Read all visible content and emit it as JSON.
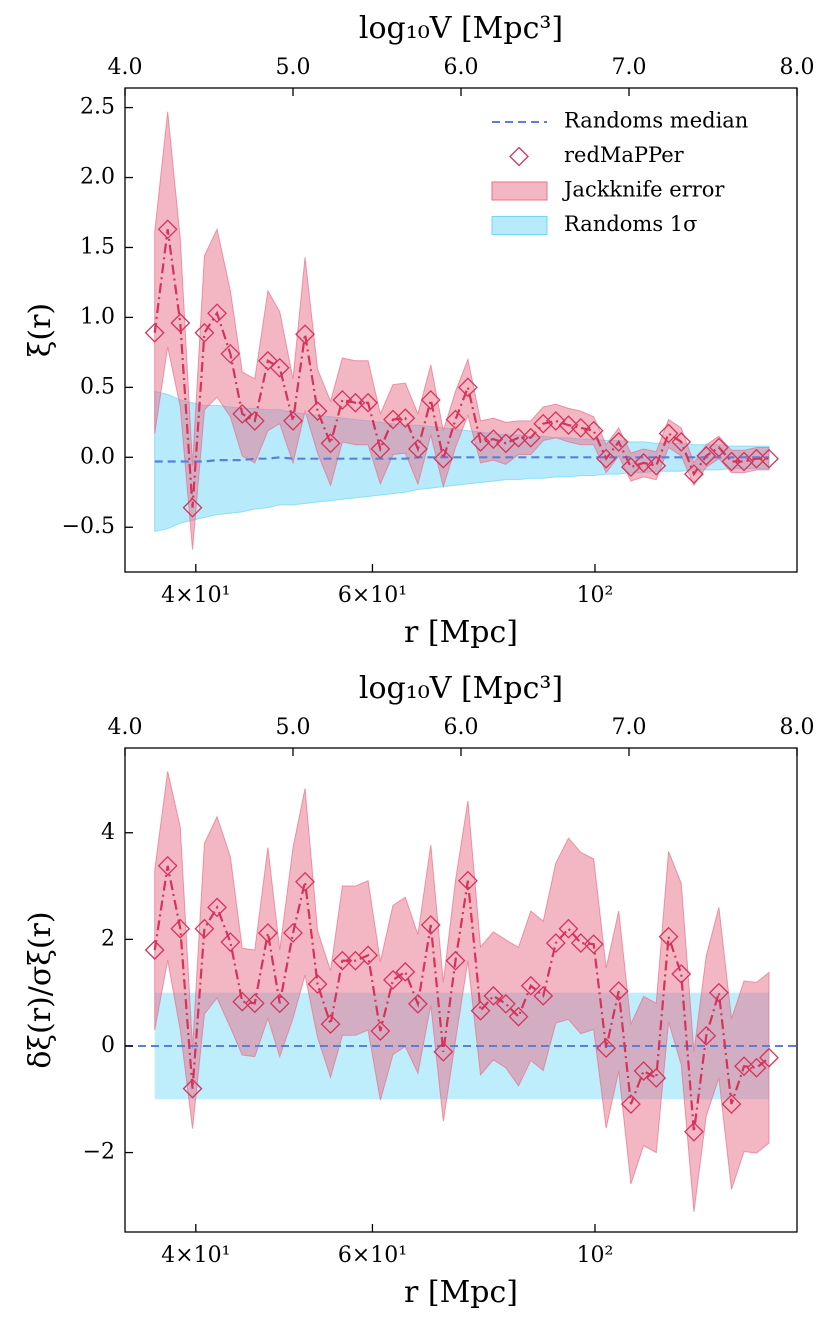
{
  "chart_data": [
    {
      "type": "line",
      "x2label": "log₁₀V [Mpc³]",
      "xlabel": "r [Mpc]",
      "ylabel": "ξ(r)",
      "xscale": "log",
      "legend": "upper right",
      "x": [
        36.4,
        37.5,
        38.6,
        39.7,
        40.8,
        42.0,
        43.3,
        44.5,
        45.8,
        47.2,
        48.5,
        50.0,
        51.4,
        52.9,
        54.5,
        56.0,
        57.7,
        59.4,
        61.1,
        62.9,
        64.7,
        66.6,
        68.6,
        70.6,
        72.6,
        74.7,
        76.9,
        79.2,
        81.5,
        83.9,
        86.3,
        88.8,
        91.4,
        94.1,
        96.8,
        99.7,
        102.6,
        105.6,
        108.6,
        111.8,
        115.1,
        118.4,
        121.9,
        125.5,
        129.1,
        132.9,
        136.8,
        140.8,
        144.9,
        149.1
      ],
      "xlim": [
        34,
        159
      ],
      "xticks": [
        {
          "value": 40,
          "label": "4×10¹"
        },
        {
          "value": 60,
          "label": "6×10¹"
        },
        {
          "value": 100,
          "label": "10²"
        }
      ],
      "x2lim": [
        4,
        8
      ],
      "x2ticks": [
        {
          "value": 4,
          "label": "4.0"
        },
        {
          "value": 5,
          "label": "5.0"
        },
        {
          "value": 6,
          "label": "6.0"
        },
        {
          "value": 7,
          "label": "7.0"
        },
        {
          "value": 8,
          "label": "8.0"
        }
      ],
      "ylim": [
        -0.82,
        2.64
      ],
      "yticks": [
        {
          "value": -0.5,
          "label": "−0.5"
        },
        {
          "value": 0,
          "label": "0.0"
        },
        0.5,
        {
          "value": 1,
          "label": "1.0"
        },
        1.5,
        {
          "value": 2,
          "label": "2.0"
        },
        2.5
      ],
      "series": [
        {
          "name": "Randoms median",
          "color": "#5b7fde",
          "style": "dashed",
          "values": [
            -0.03,
            -0.03,
            -0.03,
            -0.03,
            -0.03,
            -0.02,
            -0.02,
            -0.02,
            -0.01,
            -0.01,
            0,
            -0.01,
            -0.01,
            -0.01,
            -0.01,
            -0.01,
            -0.01,
            -0.01,
            -0.01,
            -0.01,
            -0.01,
            0,
            0,
            0,
            0,
            0,
            0,
            0,
            0,
            0,
            0,
            0,
            0,
            0,
            0,
            0,
            0,
            0,
            0,
            0,
            0,
            0,
            0,
            0,
            0,
            0,
            0,
            0,
            0,
            0
          ],
          "error_name": "Randoms 1σ",
          "error_color": "#6fd6f7",
          "errors": [
            0.5,
            0.48,
            0.44,
            0.42,
            0.4,
            0.39,
            0.38,
            0.37,
            0.36,
            0.35,
            0.34,
            0.33,
            0.32,
            0.31,
            0.3,
            0.29,
            0.28,
            0.27,
            0.26,
            0.25,
            0.24,
            0.23,
            0.22,
            0.21,
            0.2,
            0.19,
            0.18,
            0.17,
            0.16,
            0.16,
            0.15,
            0.15,
            0.14,
            0.14,
            0.13,
            0.13,
            0.12,
            0.12,
            0.11,
            0.11,
            0.1,
            0.1,
            0.1,
            0.09,
            0.09,
            0.09,
            0.08,
            0.08,
            0.08,
            0.08
          ]
        },
        {
          "name": "redMaPPer",
          "color": "#d6325a",
          "style": "dashdot",
          "marker": "diamond",
          "values": [
            0.89,
            1.63,
            0.96,
            -0.36,
            0.89,
            1.03,
            0.74,
            0.31,
            0.26,
            0.69,
            0.64,
            0.26,
            0.88,
            0.33,
            0.1,
            0.41,
            0.39,
            0.39,
            0.06,
            0.27,
            0.28,
            0.06,
            0.41,
            -0.01,
            0.27,
            0.5,
            0.11,
            0.13,
            0.1,
            0.14,
            0.14,
            0.24,
            0.26,
            0.23,
            0.21,
            0.19,
            -0.01,
            0.11,
            -0.07,
            -0.04,
            -0.06,
            0.17,
            0.11,
            -0.12,
            0.01,
            0.07,
            -0.03,
            -0.03,
            -0.01,
            -0.01
          ],
          "error_name": "Jackknife error",
          "error_color": "#e8708a",
          "errors": [
            0.72,
            0.84,
            0.6,
            0.3,
            0.55,
            0.6,
            0.45,
            0.3,
            0.3,
            0.5,
            0.4,
            0.3,
            0.55,
            0.3,
            0.3,
            0.3,
            0.3,
            0.3,
            0.25,
            0.25,
            0.25,
            0.25,
            0.25,
            0.2,
            0.2,
            0.2,
            0.15,
            0.15,
            0.15,
            0.12,
            0.12,
            0.12,
            0.12,
            0.12,
            0.12,
            0.1,
            0.1,
            0.1,
            0.1,
            0.1,
            0.1,
            0.1,
            0.1,
            0.08,
            0.08,
            0.08,
            0.08,
            0.08,
            0.08,
            0.08
          ]
        }
      ]
    },
    {
      "type": "line",
      "x2label": "log₁₀V [Mpc³]",
      "xlabel": "r [Mpc]",
      "ylabel": "δξ(r)/σξ(r)",
      "xscale": "log",
      "x": [
        36.4,
        37.5,
        38.6,
        39.7,
        40.8,
        42.0,
        43.3,
        44.5,
        45.8,
        47.2,
        48.5,
        50.0,
        51.4,
        52.9,
        54.5,
        56.0,
        57.7,
        59.4,
        61.1,
        62.9,
        64.7,
        66.6,
        68.6,
        70.6,
        72.6,
        74.7,
        76.9,
        79.2,
        81.5,
        83.9,
        86.3,
        88.8,
        91.4,
        94.1,
        96.8,
        99.7,
        102.6,
        105.6,
        108.6,
        111.8,
        115.1,
        118.4,
        121.9,
        125.5,
        129.1,
        132.9,
        136.8,
        140.8,
        144.9,
        149.1
      ],
      "xlim": [
        34,
        159
      ],
      "xticks": [
        {
          "value": 40,
          "label": "4×10¹"
        },
        {
          "value": 60,
          "label": "6×10¹"
        },
        {
          "value": 100,
          "label": "10²"
        }
      ],
      "x2lim": [
        4,
        8
      ],
      "x2ticks": [
        {
          "value": 4,
          "label": "4.0"
        },
        {
          "value": 5,
          "label": "5.0"
        },
        {
          "value": 6,
          "label": "6.0"
        },
        {
          "value": 7,
          "label": "7.0"
        },
        {
          "value": 8,
          "label": "8.0"
        }
      ],
      "ylim": [
        -3.49,
        5.59
      ],
      "yticks": [
        {
          "value": -2,
          "label": "−2"
        },
        0,
        2,
        4
      ],
      "reference": {
        "value": 0,
        "color": "#5b7fde",
        "band": [
          -1,
          1
        ],
        "band_color": "#6fd6f7"
      },
      "series": [
        {
          "color": "#d6325a",
          "style": "dashdot",
          "marker": "diamond",
          "values": [
            1.8,
            3.38,
            2.2,
            -0.8,
            2.2,
            2.6,
            1.95,
            0.83,
            0.8,
            2.12,
            0.8,
            2.12,
            3.08,
            1.16,
            0.41,
            1.6,
            1.6,
            1.7,
            0.28,
            1.24,
            1.39,
            0.79,
            2.27,
            -0.11,
            1.6,
            3.1,
            0.66,
            0.94,
            0.79,
            0.55,
            1.13,
            0.94,
            1.93,
            2.2,
            1.93,
            1.91,
            -0.04,
            1.03,
            -1.09,
            -0.47,
            -0.6,
            2.05,
            1.35,
            -1.61,
            0.19,
            1.0,
            -1.09,
            -0.38,
            -0.41,
            -0.22
          ],
          "error_color": "#e8708a",
          "errors": [
            1.5,
            1.77,
            1.9,
            0.75,
            1.6,
            1.7,
            1.6,
            1.0,
            1.0,
            1.6,
            1.0,
            1.6,
            1.75,
            1.0,
            1.0,
            1.4,
            1.4,
            1.4,
            1.3,
            1.4,
            1.4,
            1.3,
            1.5,
            1.3,
            1.5,
            1.5,
            1.2,
            1.2,
            1.2,
            1.3,
            1.4,
            1.4,
            1.5,
            1.7,
            1.7,
            1.6,
            1.5,
            1.5,
            1.5,
            1.4,
            1.4,
            1.6,
            1.7,
            1.5,
            1.5,
            1.6,
            1.6,
            1.6,
            1.6,
            1.6
          ]
        }
      ]
    }
  ]
}
